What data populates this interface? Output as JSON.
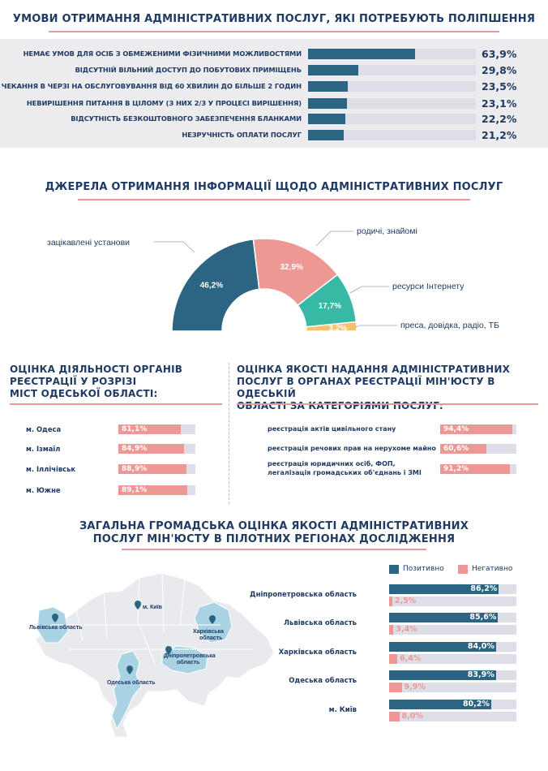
{
  "colors": {
    "navy": "#2b6583",
    "pink": "#ee9896",
    "teal": "#37b9a5",
    "yellow": "#f6c16d",
    "track": "#dedee6"
  },
  "section1": {
    "title": "УМОВИ ОТРИМАННЯ АДМІНІСТРАТИВНИХ ПОСЛУГ, ЯКІ ПОТРЕБУЮТЬ ПОЛІПШЕННЯ",
    "value_labels": [
      "63,9%",
      "29,8%",
      "23,5%",
      "23,1%",
      "22,2%",
      "21,2%"
    ]
  },
  "section2": {
    "title": "ДЖЕРЕЛА ОТРИМАННЯ ІНФОРМАЦІЇ ЩОДО АДМІНІСТРАТИВНИХ ПОСЛУГ",
    "slice_labels": [
      "46,2%",
      "32,9%",
      "17,7%",
      "3,2%"
    ]
  },
  "section3": {
    "title_lines": [
      "ОЦІНКА ДІЯЛЬНОСТІ ОРГАНІВ",
      "РЕЄСТРАЦІЇ У РОЗРІЗІ",
      "МІСТ ОДЕСЬКОЇ ОБЛАСТІ:"
    ],
    "value_labels": [
      "81,1%",
      "84,9%",
      "88,9%",
      "89,1%"
    ]
  },
  "section4": {
    "title_lines": [
      "ОЦІНКА ЯКОСТІ НАДАННЯ АДМІНІСТРАТИВНИХ",
      "ПОСЛУГ В ОРГАНАХ РЕЄСТРАЦІЇ МІН'ЮСТУ В ОДЕСЬКІЙ",
      "ОБЛАСТІ ЗА КАТЕГОРІЯМИ ПОСЛУГ:"
    ],
    "category_lines": [
      [
        "реєстрація актів цивільного стану"
      ],
      [
        "реєстрація речових прав на нерухоме майно"
      ],
      [
        "реєстрація юридичних осіб, ФОП,",
        "легалізація громадських об'єднань і ЗМІ"
      ]
    ],
    "value_labels": [
      "94,4%",
      "60,6%",
      "91,2%"
    ]
  },
  "section5": {
    "title_lines": [
      "ЗАГАЛЬНА ГРОМАДСЬКА ОЦІНКА ЯКОСТІ АДМІНІСТРАТИВНИХ",
      "ПОСЛУГ МІН'ЮСТУ В ПІЛОТНИХ РЕГІОНАХ ДОСЛІДЖЕННЯ"
    ],
    "legend": {
      "positive": "Позитивно",
      "negative": "Негативно"
    },
    "positive_labels": [
      "86,2%",
      "85,6%",
      "84,0%",
      "83,9%",
      "80,2%"
    ],
    "negative_labels": [
      "2,5%",
      "3,4%",
      "6,4%",
      "9,9%",
      "8,0%"
    ],
    "map_labels": {
      "kyiv": "м. Київ",
      "lviv": "Львівська область",
      "kharkiv": [
        "Харківська",
        "область"
      ],
      "dnipro": [
        "Дніпропетровська",
        "область"
      ],
      "odesa": "Одеська область"
    }
  },
  "chart_data": [
    {
      "type": "bar",
      "orientation": "horizontal",
      "title": "УМОВИ ОТРИМАННЯ АДМІНІСТРАТИВНИХ ПОСЛУГ, ЯКІ ПОТРЕБУЮТЬ ПОЛІПШЕННЯ",
      "categories": [
        "НЕМАЄ УМОВ ДЛЯ ОСІБ З ОБМЕЖЕНИМИ ФІЗИЧНИМИ МОЖЛИВОСТЯМИ",
        "ВІДСУТНІЙ ВІЛЬНИЙ ДОСТУП ДО ПОБУТОВИХ ПРИМІЩЕНЬ",
        "ЧЕКАННЯ В ЧЕРЗІ НА ОБСЛУГОВУВАННЯ ВІД 60 ХВИЛИН ДО БІЛЬШЕ 2 ГОДИН",
        "НЕВИРІШЕННЯ ПИТАННЯ В ЦІЛОМУ (З НИХ 2/3 У ПРОЦЕСІ ВИРІШЕННЯ)",
        "ВІДСУТНІСТЬ БЕЗКОШТОВНОГО ЗАБЕЗПЕЧЕННЯ БЛАНКАМИ",
        "НЕЗРУЧНІСТЬ ОПЛАТИ ПОСЛУГ"
      ],
      "values": [
        63.9,
        29.8,
        23.5,
        23.1,
        22.2,
        21.2
      ],
      "xlim": [
        0,
        100
      ]
    },
    {
      "type": "pie",
      "variant": "semicircle-donut",
      "title": "ДЖЕРЕЛА ОТРИМАННЯ ІНФОРМАЦІЇ ЩОДО АДМІНІСТРАТИВНИХ ПОСЛУГ",
      "categories": [
        "зацікавлені установи",
        "родичі, знайомі",
        "ресурси Інтернету",
        "преса, довідка, радіо, ТБ"
      ],
      "values": [
        46.2,
        32.9,
        17.7,
        3.2
      ],
      "colors": [
        "#2b6583",
        "#ee9896",
        "#37b9a5",
        "#f6c16d"
      ]
    },
    {
      "type": "bar",
      "orientation": "horizontal",
      "title": "ОЦІНКА ДІЯЛЬНОСТІ ОРГАНІВ РЕЄСТРАЦІЇ У РОЗРІЗІ МІСТ ОДЕСЬКОЇ ОБЛАСТІ:",
      "categories": [
        "м. Одеса",
        "м. Ізмаїл",
        "м. Іллічівськ",
        "м. Южне"
      ],
      "values": [
        81.1,
        84.9,
        88.9,
        89.1
      ],
      "xlim": [
        0,
        100
      ]
    },
    {
      "type": "bar",
      "orientation": "horizontal",
      "title": "ОЦІНКА ЯКОСТІ НАДАННЯ АДМІНІСТРАТИВНИХ ПОСЛУГ В ОРГАНАХ РЕЄСТРАЦІЇ МІН'ЮСТУ В ОДЕСЬКІЙ ОБЛАСТІ ЗА КАТЕГОРІЯМИ ПОСЛУГ:",
      "categories": [
        "реєстрація актів цивільного стану",
        "реєстрація речових прав на нерухоме майно",
        "реєстрація юридичних осіб, ФОП, легалізація громадських об'єднань і ЗМІ"
      ],
      "values": [
        94.4,
        60.6,
        91.2
      ],
      "xlim": [
        0,
        100
      ]
    },
    {
      "type": "bar",
      "orientation": "horizontal",
      "title": "ЗАГАЛЬНА ГРОМАДСЬКА ОЦІНКА ЯКОСТІ АДМІНІСТРАТИВНИХ ПОСЛУГ МІН'ЮСТУ В ПІЛОТНИХ РЕГІОНАХ ДОСЛІДЖЕННЯ",
      "categories": [
        "Дніпропетровська область",
        "Львівська область",
        "Харківська область",
        "Одеська область",
        "м. Київ"
      ],
      "series": [
        {
          "name": "Позитивно",
          "values": [
            86.2,
            85.6,
            84.0,
            83.9,
            80.2
          ],
          "color": "#2b6583"
        },
        {
          "name": "Негативно",
          "values": [
            2.5,
            3.4,
            6.4,
            9.9,
            8.0
          ],
          "color": "#ee9896"
        }
      ],
      "xlim": [
        0,
        100
      ],
      "legend": "top"
    }
  ]
}
